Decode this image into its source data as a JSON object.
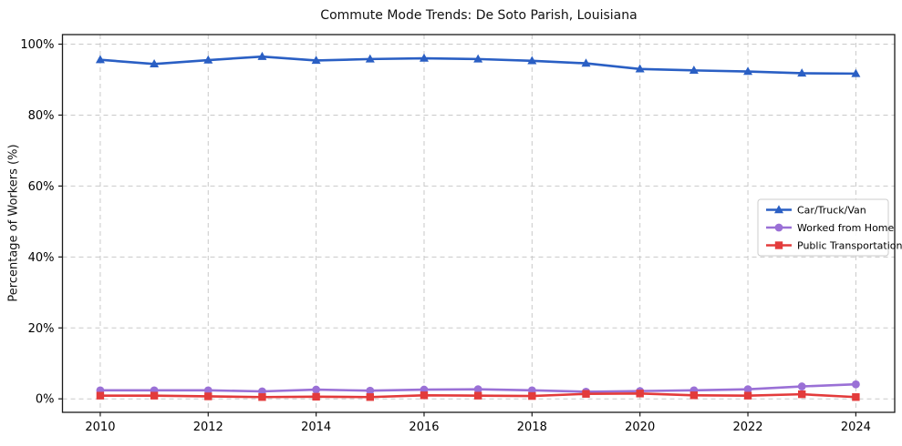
{
  "chart_data": {
    "type": "line",
    "title": "Commute Mode Trends: De Soto Parish, Louisiana",
    "xlabel": "",
    "ylabel": "Percentage of Workers (%)",
    "x": [
      2010,
      2011,
      2012,
      2013,
      2014,
      2015,
      2016,
      2017,
      2018,
      2019,
      2020,
      2021,
      2022,
      2023,
      2024
    ],
    "x_tick_labels": [
      "2010",
      "2012",
      "2014",
      "2016",
      "2018",
      "2020",
      "2022",
      "2024"
    ],
    "y_ticks": [
      0,
      20,
      40,
      60,
      80,
      100
    ],
    "y_tick_suffix": "%",
    "xlim": [
      2009.3,
      2024.72
    ],
    "ylim": [
      -3.8,
      102.7
    ],
    "grid": true,
    "grid_style": "dashed",
    "legend_position": "center-right",
    "series": [
      {
        "name": "Car/Truck/Van",
        "color": "#2a5fc4",
        "marker": "triangle",
        "values": [
          95.6,
          94.4,
          95.5,
          96.5,
          95.4,
          95.8,
          96.0,
          95.8,
          95.3,
          94.6,
          93.0,
          92.6,
          92.3,
          91.8,
          91.7
        ]
      },
      {
        "name": "Worked from Home",
        "color": "#9a70d6",
        "marker": "circle",
        "values": [
          2.4,
          2.4,
          2.4,
          2.1,
          2.6,
          2.3,
          2.6,
          2.7,
          2.4,
          2.0,
          2.2,
          2.4,
          2.7,
          3.5,
          4.1
        ]
      },
      {
        "name": "Public Transportation",
        "color": "#e33b3b",
        "marker": "square",
        "values": [
          0.9,
          0.9,
          0.7,
          0.5,
          0.6,
          0.5,
          1.0,
          0.9,
          0.8,
          1.4,
          1.5,
          1.0,
          0.9,
          1.3,
          0.5
        ]
      }
    ],
    "colors": {
      "grid": "#c9c9c9",
      "spine": "#1a1a1a",
      "text": "#000000",
      "background": "#ffffff"
    }
  }
}
